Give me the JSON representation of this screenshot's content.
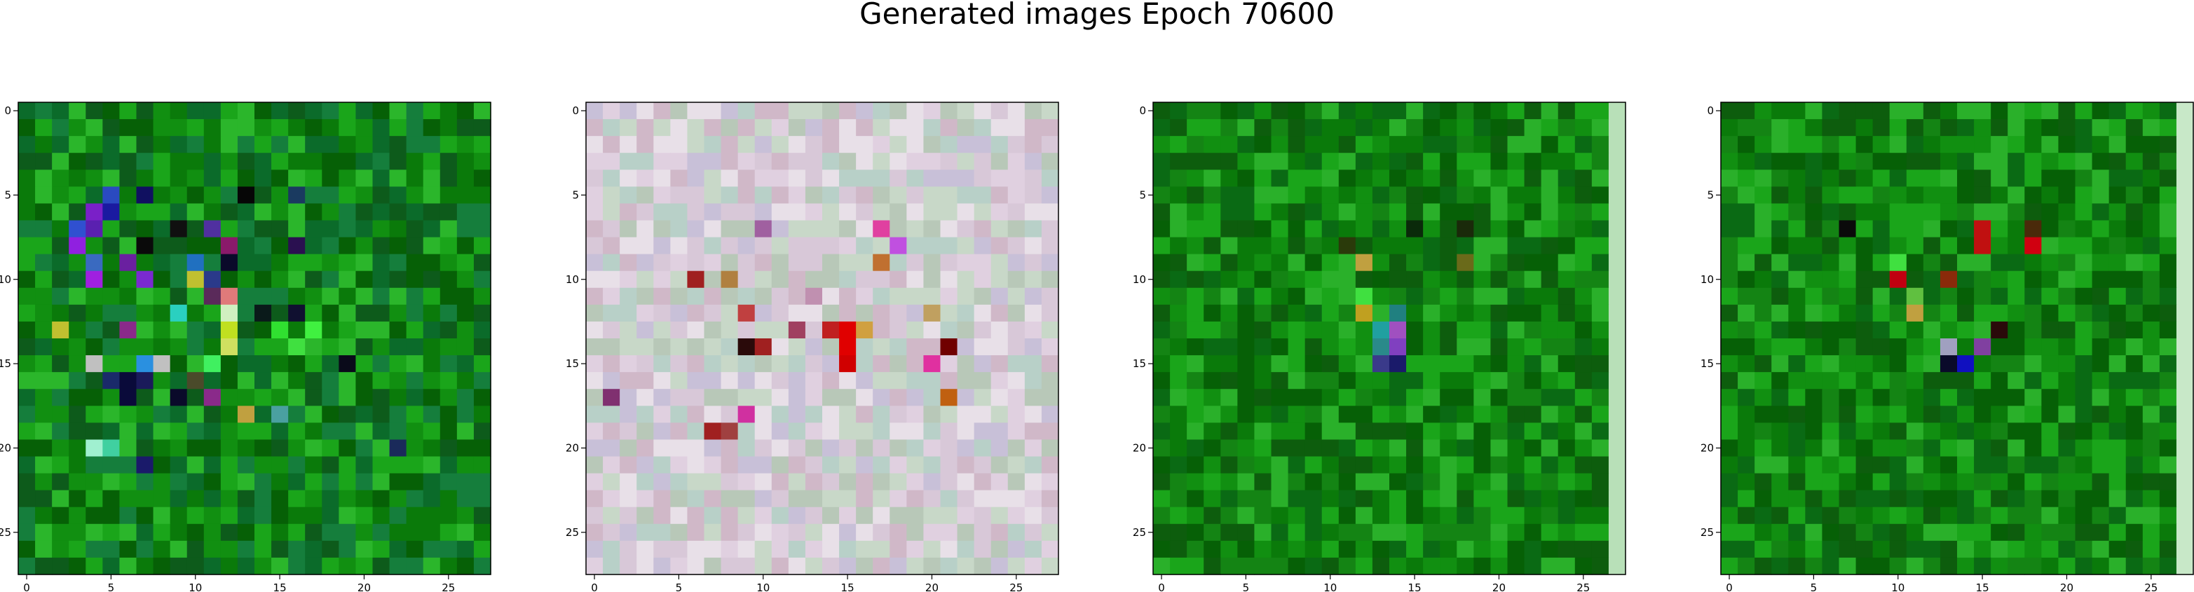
{
  "figure": {
    "title": "Generated images Epoch 70600"
  },
  "chart_data": {
    "type": "heatmap",
    "grid_size": 28,
    "grid": false,
    "xlim": [
      -0.5,
      27.5
    ],
    "ylim": [
      27.5,
      -0.5
    ],
    "xticks": [
      0,
      5,
      10,
      15,
      20,
      25
    ],
    "yticks": [
      0,
      5,
      10,
      15,
      20,
      25
    ],
    "panels": [
      {
        "subplot": 1,
        "palette": [
          "#0a7a0a",
          "#118f11",
          "#066006",
          "#1aa51a",
          "#0b6b2a",
          "#2bb62b",
          "#0d5b1b",
          "#157e3c"
        ],
        "highlights": [
          {
            "row": 6,
            "col": 4,
            "color": "#7a20c8"
          },
          {
            "row": 6,
            "col": 5,
            "color": "#1a1aa0"
          },
          {
            "row": 5,
            "col": 5,
            "color": "#2a4ac0"
          },
          {
            "row": 5,
            "col": 7,
            "color": "#101060"
          },
          {
            "row": 5,
            "col": 13,
            "color": "#060606"
          },
          {
            "row": 5,
            "col": 16,
            "color": "#1a3a60"
          },
          {
            "row": 7,
            "col": 3,
            "color": "#3050d0"
          },
          {
            "row": 7,
            "col": 4,
            "color": "#5a20b0"
          },
          {
            "row": 7,
            "col": 9,
            "color": "#101010"
          },
          {
            "row": 7,
            "col": 11,
            "color": "#5030a0"
          },
          {
            "row": 8,
            "col": 3,
            "color": "#9020e0"
          },
          {
            "row": 8,
            "col": 7,
            "color": "#0a0a0a"
          },
          {
            "row": 8,
            "col": 12,
            "color": "#8a1a6a"
          },
          {
            "row": 8,
            "col": 16,
            "color": "#2a1050"
          },
          {
            "row": 9,
            "col": 4,
            "color": "#3a6ac0"
          },
          {
            "row": 9,
            "col": 6,
            "color": "#6a20a0"
          },
          {
            "row": 9,
            "col": 10,
            "color": "#2070c0"
          },
          {
            "row": 9,
            "col": 12,
            "color": "#0a0a2a"
          },
          {
            "row": 10,
            "col": 4,
            "color": "#a020e0"
          },
          {
            "row": 10,
            "col": 7,
            "color": "#7a2ad0"
          },
          {
            "row": 10,
            "col": 10,
            "color": "#c0c030"
          },
          {
            "row": 10,
            "col": 11,
            "color": "#2a3a8a"
          },
          {
            "row": 11,
            "col": 11,
            "color": "#5a2a5a"
          },
          {
            "row": 11,
            "col": 12,
            "color": "#e07a7a"
          },
          {
            "row": 12,
            "col": 9,
            "color": "#2ad0c0"
          },
          {
            "row": 12,
            "col": 12,
            "color": "#d0f0c0"
          },
          {
            "row": 12,
            "col": 14,
            "color": "#0a1a1a"
          },
          {
            "row": 12,
            "col": 16,
            "color": "#101030"
          },
          {
            "row": 13,
            "col": 2,
            "color": "#c0c030"
          },
          {
            "row": 13,
            "col": 6,
            "color": "#8a2a8a"
          },
          {
            "row": 13,
            "col": 12,
            "color": "#c0e020"
          },
          {
            "row": 13,
            "col": 15,
            "color": "#30e030"
          },
          {
            "row": 13,
            "col": 17,
            "color": "#40f040"
          },
          {
            "row": 14,
            "col": 12,
            "color": "#d0e060"
          },
          {
            "row": 14,
            "col": 16,
            "color": "#40e040"
          },
          {
            "row": 15,
            "col": 4,
            "color": "#c0c0c0"
          },
          {
            "row": 15,
            "col": 7,
            "color": "#2a90e0"
          },
          {
            "row": 15,
            "col": 8,
            "color": "#c0c0c0"
          },
          {
            "row": 15,
            "col": 11,
            "color": "#40f060"
          },
          {
            "row": 15,
            "col": 19,
            "color": "#0a0a1a"
          },
          {
            "row": 16,
            "col": 5,
            "color": "#1a2a6a"
          },
          {
            "row": 16,
            "col": 6,
            "color": "#0a0a3a"
          },
          {
            "row": 16,
            "col": 7,
            "color": "#1a1a5a"
          },
          {
            "row": 16,
            "col": 10,
            "color": "#4a4a2a"
          },
          {
            "row": 17,
            "col": 6,
            "color": "#0a0a3a"
          },
          {
            "row": 17,
            "col": 9,
            "color": "#0a0a2a"
          },
          {
            "row": 17,
            "col": 11,
            "color": "#8a2a8a"
          },
          {
            "row": 18,
            "col": 13,
            "color": "#c0a040"
          },
          {
            "row": 18,
            "col": 15,
            "color": "#4aa0a0"
          },
          {
            "row": 20,
            "col": 4,
            "color": "#a0f0d0"
          },
          {
            "row": 20,
            "col": 5,
            "color": "#40d0a0"
          },
          {
            "row": 20,
            "col": 22,
            "color": "#1a2a5a"
          },
          {
            "row": 21,
            "col": 7,
            "color": "#1a1a6a"
          }
        ]
      },
      {
        "subplot": 2,
        "palette": [
          "#d8c8d8",
          "#c8d8c8",
          "#e0d0e0",
          "#b8c8b8",
          "#d0b8c8",
          "#c8c0d8",
          "#e8e0e8",
          "#b8d0c8"
        ],
        "highlights": [
          {
            "row": 7,
            "col": 10,
            "color": "#a060a0"
          },
          {
            "row": 7,
            "col": 17,
            "color": "#e040a0"
          },
          {
            "row": 8,
            "col": 18,
            "color": "#c050e0"
          },
          {
            "row": 9,
            "col": 17,
            "color": "#c07030"
          },
          {
            "row": 10,
            "col": 6,
            "color": "#a02020"
          },
          {
            "row": 10,
            "col": 8,
            "color": "#b08040"
          },
          {
            "row": 11,
            "col": 13,
            "color": "#c090b0"
          },
          {
            "row": 12,
            "col": 9,
            "color": "#c04040"
          },
          {
            "row": 12,
            "col": 20,
            "color": "#c0a060"
          },
          {
            "row": 13,
            "col": 12,
            "color": "#a04060"
          },
          {
            "row": 13,
            "col": 14,
            "color": "#c02020"
          },
          {
            "row": 13,
            "col": 15,
            "color": "#e00000"
          },
          {
            "row": 13,
            "col": 16,
            "color": "#d0a040"
          },
          {
            "row": 14,
            "col": 9,
            "color": "#2a0a0a"
          },
          {
            "row": 14,
            "col": 10,
            "color": "#a02020"
          },
          {
            "row": 14,
            "col": 15,
            "color": "#e00000"
          },
          {
            "row": 14,
            "col": 21,
            "color": "#700000"
          },
          {
            "row": 15,
            "col": 15,
            "color": "#d00000"
          },
          {
            "row": 15,
            "col": 20,
            "color": "#e030a0"
          },
          {
            "row": 17,
            "col": 1,
            "color": "#803070"
          },
          {
            "row": 17,
            "col": 21,
            "color": "#c06010"
          },
          {
            "row": 18,
            "col": 9,
            "color": "#d030a0"
          },
          {
            "row": 19,
            "col": 7,
            "color": "#a02020"
          },
          {
            "row": 19,
            "col": 8,
            "color": "#a04040"
          }
        ]
      },
      {
        "subplot": 3,
        "palette": [
          "#0a7a0a",
          "#118f11",
          "#066006",
          "#1aa51a",
          "#0a6a14",
          "#2ab02a",
          "#0d5d0d",
          "#148414"
        ],
        "edge_color": "#b8e0b8",
        "highlights": [
          {
            "row": 7,
            "col": 15,
            "color": "#0a2a0a"
          },
          {
            "row": 7,
            "col": 18,
            "color": "#1a2a0a"
          },
          {
            "row": 8,
            "col": 11,
            "color": "#2a3a0a"
          },
          {
            "row": 9,
            "col": 12,
            "color": "#c0a040"
          },
          {
            "row": 9,
            "col": 18,
            "color": "#6a6a1a"
          },
          {
            "row": 11,
            "col": 12,
            "color": "#40e040"
          },
          {
            "row": 12,
            "col": 12,
            "color": "#c0a020"
          },
          {
            "row": 12,
            "col": 14,
            "color": "#208080"
          },
          {
            "row": 13,
            "col": 13,
            "color": "#20a0a0"
          },
          {
            "row": 13,
            "col": 14,
            "color": "#a050c0"
          },
          {
            "row": 14,
            "col": 13,
            "color": "#2a8a8a"
          },
          {
            "row": 14,
            "col": 14,
            "color": "#8040c0"
          },
          {
            "row": 15,
            "col": 13,
            "color": "#3a3a8a"
          },
          {
            "row": 15,
            "col": 14,
            "color": "#1a1a6a"
          }
        ]
      },
      {
        "subplot": 4,
        "palette": [
          "#0a7a0a",
          "#118f11",
          "#066006",
          "#1aa51a",
          "#0a6a14",
          "#2ab02a",
          "#0d5d0d",
          "#148414"
        ],
        "edge_color": "#c8e8c8",
        "highlights": [
          {
            "row": 7,
            "col": 7,
            "color": "#0a0a0a"
          },
          {
            "row": 7,
            "col": 15,
            "color": "#c01010"
          },
          {
            "row": 7,
            "col": 18,
            "color": "#4a2a0a"
          },
          {
            "row": 8,
            "col": 15,
            "color": "#c01010"
          },
          {
            "row": 8,
            "col": 18,
            "color": "#d00010"
          },
          {
            "row": 9,
            "col": 10,
            "color": "#40e040"
          },
          {
            "row": 10,
            "col": 10,
            "color": "#c00010"
          },
          {
            "row": 10,
            "col": 13,
            "color": "#8a2a0a"
          },
          {
            "row": 11,
            "col": 11,
            "color": "#60c040"
          },
          {
            "row": 12,
            "col": 11,
            "color": "#c0a040"
          },
          {
            "row": 13,
            "col": 16,
            "color": "#2a0a0a"
          },
          {
            "row": 14,
            "col": 13,
            "color": "#a0a0c0"
          },
          {
            "row": 14,
            "col": 15,
            "color": "#8040a0"
          },
          {
            "row": 15,
            "col": 13,
            "color": "#0a0a2a"
          },
          {
            "row": 15,
            "col": 14,
            "color": "#1010c0"
          }
        ]
      }
    ]
  }
}
